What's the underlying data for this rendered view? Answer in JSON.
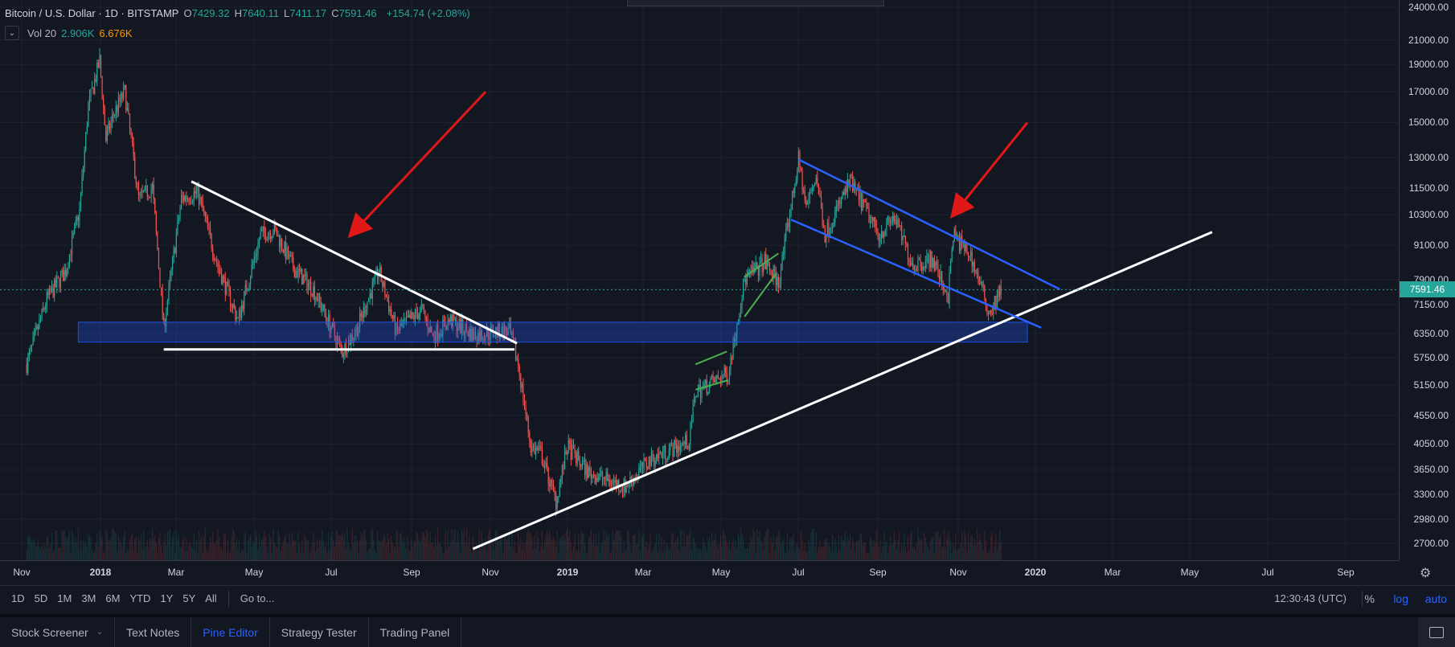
{
  "legend": {
    "symbol": "Bitcoin / U.S. Dollar · 1D · BITSTAMP",
    "ohlc": [
      {
        "label": "O",
        "value": "7429.32"
      },
      {
        "label": "H",
        "value": "7640.11"
      },
      {
        "label": "L",
        "value": "7411.17"
      },
      {
        "label": "C",
        "value": "7591.46"
      }
    ],
    "change": "+154.74 (+2.08%)",
    "volume_label": "Vol 20",
    "volume_value_1": "2.906K",
    "volume_value_2": "6.676K",
    "collapse_icon": "chevron-down-icon"
  },
  "chart_data": {
    "type": "candlestick",
    "symbol": "BTCUSD",
    "exchange": "BITSTAMP",
    "interval": "1D",
    "last_price": "7591.46",
    "y_scale": "log",
    "price_ticks": [
      "24000.00",
      "21000.00",
      "19000.00",
      "17000.00",
      "15000.00",
      "13000.00",
      "11500.00",
      "10300.00",
      "9100.00",
      "7900.00",
      "7150.00",
      "6350.00",
      "5750.00",
      "5150.00",
      "4550.00",
      "4050.00",
      "3650.00",
      "3300.00",
      "2980.00",
      "2700.00"
    ],
    "time_ticks": [
      "Nov",
      "2018",
      "Mar",
      "May",
      "Jul",
      "Sep",
      "Nov",
      "2019",
      "Mar",
      "May",
      "Jul",
      "Sep",
      "Nov",
      "2020",
      "Mar",
      "May",
      "Jul",
      "Sep"
    ],
    "price_path": [
      [
        "2017-10-20",
        5600
      ],
      [
        "2017-11-05",
        7300
      ],
      [
        "2017-11-20",
        8200
      ],
      [
        "2017-12-01",
        10500
      ],
      [
        "2017-12-08",
        16000
      ],
      [
        "2017-12-17",
        19300
      ],
      [
        "2017-12-22",
        14000
      ],
      [
        "2017-12-28",
        15500
      ],
      [
        "2018-01-06",
        17000
      ],
      [
        "2018-01-17",
        11000
      ],
      [
        "2018-01-28",
        11500
      ],
      [
        "2018-02-06",
        6500
      ],
      [
        "2018-02-20",
        11000
      ],
      [
        "2018-03-05",
        11300
      ],
      [
        "2018-03-20",
        8500
      ],
      [
        "2018-04-06",
        6700
      ],
      [
        "2018-04-24",
        9500
      ],
      [
        "2018-05-05",
        9700
      ],
      [
        "2018-05-20",
        8300
      ],
      [
        "2018-06-05",
        7600
      ],
      [
        "2018-06-28",
        5900
      ],
      [
        "2018-07-10",
        6500
      ],
      [
        "2018-07-27",
        8200
      ],
      [
        "2018-08-10",
        6400
      ],
      [
        "2018-08-30",
        7000
      ],
      [
        "2018-09-08",
        6300
      ],
      [
        "2018-09-22",
        6700
      ],
      [
        "2018-10-11",
        6300
      ],
      [
        "2018-10-28",
        6400
      ],
      [
        "2018-11-08",
        6400
      ],
      [
        "2018-11-15",
        5600
      ],
      [
        "2018-11-25",
        4000
      ],
      [
        "2018-12-03",
        3900
      ],
      [
        "2018-12-15",
        3200
      ],
      [
        "2018-12-24",
        4000
      ],
      [
        "2019-01-10",
        3600
      ],
      [
        "2019-02-08",
        3400
      ],
      [
        "2019-02-28",
        3800
      ],
      [
        "2019-03-31",
        4100
      ],
      [
        "2019-04-05",
        5000
      ],
      [
        "2019-05-01",
        5400
      ],
      [
        "2019-05-14",
        7900
      ],
      [
        "2019-05-30",
        8500
      ],
      [
        "2019-06-10",
        7800
      ],
      [
        "2019-06-26",
        12900
      ],
      [
        "2019-07-02",
        10600
      ],
      [
        "2019-07-10",
        12100
      ],
      [
        "2019-07-17",
        9500
      ],
      [
        "2019-08-06",
        11800
      ],
      [
        "2019-08-29",
        9500
      ],
      [
        "2019-09-10",
        10200
      ],
      [
        "2019-09-25",
        8400
      ],
      [
        "2019-10-10",
        8600
      ],
      [
        "2019-10-23",
        7400
      ],
      [
        "2019-10-27",
        9500
      ],
      [
        "2019-11-10",
        8700
      ],
      [
        "2019-11-25",
        6900
      ],
      [
        "2019-12-04",
        7591
      ]
    ],
    "drawings": [
      {
        "type": "trendline",
        "color": "#ffffff",
        "from": [
          "2018-02-28",
          11800
        ],
        "to": [
          "2018-11-14",
          6100
        ]
      },
      {
        "type": "trendline",
        "color": "#ffffff",
        "from": [
          "2018-02-06",
          5950
        ],
        "to": [
          "2018-11-12",
          5950
        ]
      },
      {
        "type": "trendline",
        "color": "#ffffff",
        "from": [
          "2018-10-10",
          2640
        ],
        "to": [
          "2020-05-20",
          9600
        ]
      },
      {
        "type": "channel",
        "color": "#2962ff",
        "upper": [
          [
            "2019-06-26",
            12900
          ],
          [
            "2020-01-20",
            7600
          ]
        ],
        "lower": [
          [
            "2019-06-20",
            10100
          ],
          [
            "2020-01-05",
            6500
          ]
        ]
      },
      {
        "type": "rectangle",
        "color": "#1e53e5",
        "from": [
          "2017-11-30",
          6130
        ],
        "to": [
          "2019-12-25",
          6650
        ]
      },
      {
        "type": "channel",
        "color": "#4caf50",
        "upper": [
          [
            "2019-04-05",
            5600
          ],
          [
            "2019-04-30",
            5900
          ]
        ],
        "lower": [
          [
            "2019-04-05",
            5050
          ],
          [
            "2019-05-01",
            5250
          ]
        ]
      },
      {
        "type": "channel",
        "color": "#4caf50",
        "upper": [
          [
            "2019-05-14",
            8000
          ],
          [
            "2019-06-10",
            8800
          ]
        ],
        "lower": [
          [
            "2019-05-14",
            6800
          ],
          [
            "2019-06-08",
            8100
          ]
        ]
      },
      {
        "type": "arrow",
        "color": "#e01818",
        "from": [
          "2018-10-20",
          17000
        ],
        "to": [
          "2018-07-05",
          9500
        ]
      },
      {
        "type": "arrow",
        "color": "#e01818",
        "from": [
          "2019-12-25",
          15000
        ],
        "to": [
          "2019-10-27",
          10300
        ]
      }
    ]
  },
  "range_bar": {
    "buttons": [
      "1D",
      "5D",
      "1M",
      "3M",
      "6M",
      "YTD",
      "1Y",
      "5Y",
      "All"
    ],
    "goto": "Go to...",
    "clock": "12:30:43 (UTC)",
    "pct": "%",
    "log": "log",
    "auto": "auto"
  },
  "bottom_tabs": {
    "stock_screener": "Stock Screener",
    "text_notes": "Text Notes",
    "pine_editor": "Pine Editor",
    "strategy_tester": "Strategy Tester",
    "trading_panel": "Trading Panel"
  },
  "colors": {
    "background": "#131722",
    "up": "#26a69a",
    "down": "#ef5350",
    "accent": "#2962ff"
  }
}
